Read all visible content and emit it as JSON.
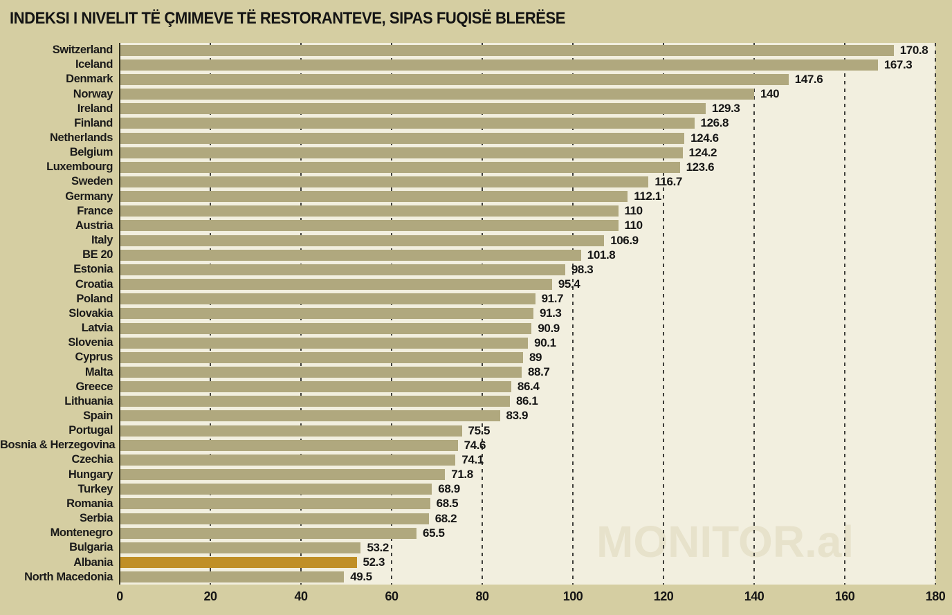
{
  "title": "INDEKSI I NIVELIT TË ÇMIMEVE TË RESTORANTEVE, SIPAS FUQISË BLERËSE",
  "watermark": "MONITOR.al",
  "chart_data": {
    "type": "bar",
    "orientation": "horizontal",
    "title": "INDEKSI I NIVELIT TË ÇMIMEVE TË RESTORANTEVE, SIPAS FUQISË BLERËSE",
    "categories": [
      "Switzerland",
      "Iceland",
      "Denmark",
      "Norway",
      "Ireland",
      "Finland",
      "Netherlands",
      "Belgium",
      "Luxembourg",
      "Sweden",
      "Germany",
      "France",
      "Austria",
      "Italy",
      "BE 20",
      "Estonia",
      "Croatia",
      "Poland",
      "Slovakia",
      "Latvia",
      "Slovenia",
      "Cyprus",
      "Malta",
      "Greece",
      "Lithuania",
      "Spain",
      "Portugal",
      "Bosnia & Herzegovina",
      "Czechia",
      "Hungary",
      "Turkey",
      "Romania",
      "Serbia",
      "Montenegro",
      "Bulgaria",
      "Albania",
      "North Macedonia"
    ],
    "values": [
      170.8,
      167.3,
      147.6,
      140,
      129.3,
      126.8,
      124.6,
      124.2,
      123.6,
      116.7,
      112.1,
      110,
      110,
      106.9,
      101.8,
      98.3,
      95.4,
      91.7,
      91.3,
      90.9,
      90.1,
      89,
      88.7,
      86.4,
      86.1,
      83.9,
      75.5,
      74.6,
      74.1,
      71.8,
      68.9,
      68.5,
      68.2,
      65.5,
      53.2,
      52.3,
      49.5
    ],
    "value_labels": [
      "170.8",
      "167.3",
      "147.6",
      "140",
      "129.3",
      "126.8",
      "124.6",
      "124.2",
      "123.6",
      "116.7",
      "112.1",
      "110",
      "110",
      "106.9",
      "101.8",
      "98.3",
      "95.4",
      "91.7",
      "91.3",
      "90.9",
      "90.1",
      "89",
      "88.7",
      "86.4",
      "86.1",
      "83.9",
      "75.5",
      "74.6",
      "74.1",
      "71.8",
      "68.9",
      "68.5",
      "68.2",
      "65.5",
      "53.2",
      "52.3",
      "49.5"
    ],
    "highlight_category": "Albania",
    "xlabel": "",
    "ylabel": "",
    "xlim": [
      0,
      180
    ],
    "x_ticks": [
      0,
      20,
      40,
      60,
      80,
      100,
      120,
      140,
      160,
      180
    ],
    "grid": "dashed-vertical",
    "legend": "none",
    "colors": {
      "page_bg": "#D5CEA2",
      "plot_bg": "#F2EFDF",
      "bar": "#B0A87E",
      "highlight_bar": "#C08F26",
      "text": "#1A1A1A",
      "gridline": "#3E3E3A",
      "watermark": "#E7E2CB"
    }
  }
}
